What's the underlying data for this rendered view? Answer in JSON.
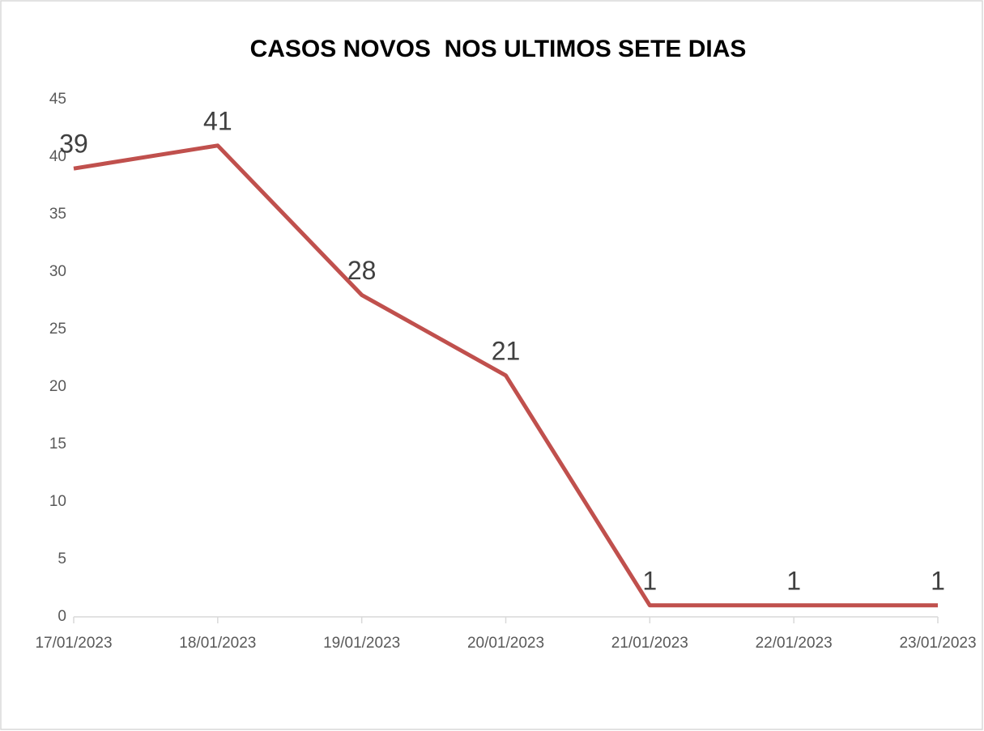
{
  "chart_data": {
    "type": "line",
    "title": "CASOS NOVOS  NOS ULTIMOS SETE DIAS",
    "categories": [
      "17/01/2023",
      "18/01/2023",
      "19/01/2023",
      "20/01/2023",
      "21/01/2023",
      "22/01/2023",
      "23/01/2023"
    ],
    "series": [
      {
        "name": "Casos novos",
        "color": "#c0504d",
        "values": [
          39,
          41,
          28,
          21,
          1,
          1,
          1
        ]
      }
    ],
    "ylim": [
      0,
      45
    ],
    "yticks": [
      0,
      5,
      10,
      15,
      20,
      25,
      30,
      35,
      40,
      45
    ],
    "grid": false,
    "legend": false
  }
}
